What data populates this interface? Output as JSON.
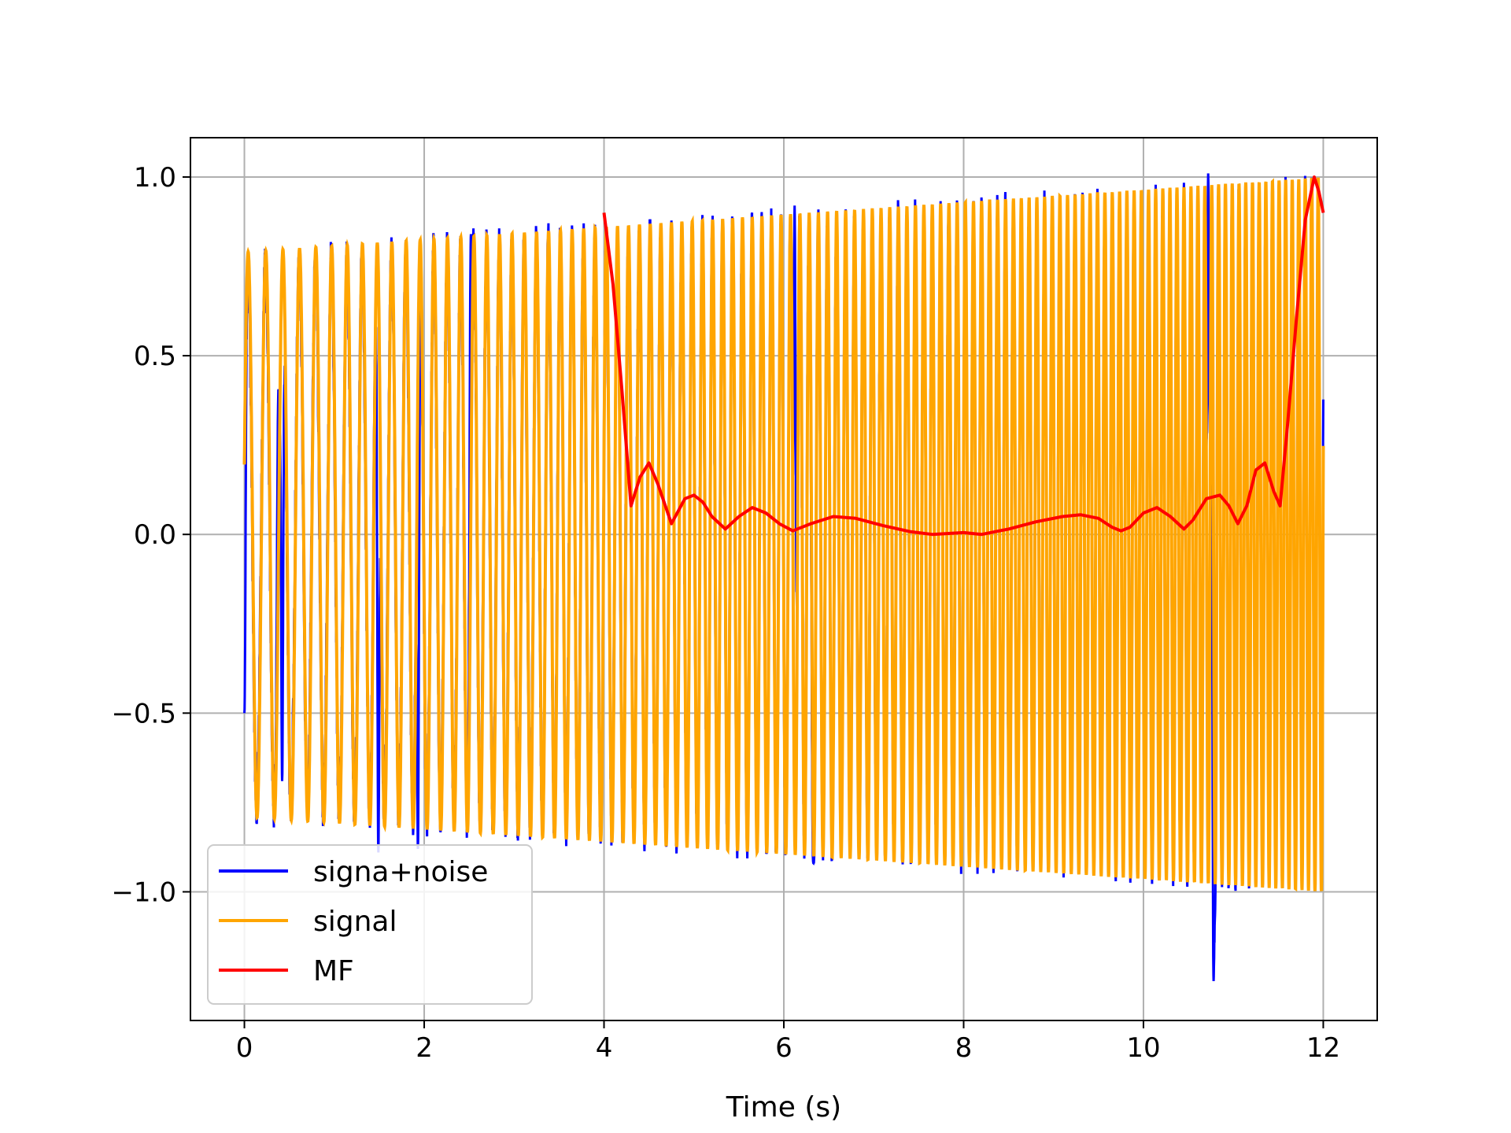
{
  "chart_data": {
    "type": "line",
    "title": "",
    "xlabel": "Time (s)",
    "ylabel": "",
    "xlim": [
      -0.6,
      12.6
    ],
    "ylim": [
      -1.36,
      1.11
    ],
    "xticks": [
      0,
      2,
      4,
      6,
      8,
      10,
      12
    ],
    "yticks": [
      1.0,
      0.5,
      0.0,
      -0.5,
      -1.0
    ],
    "xtick_labels": [
      "0",
      "2",
      "4",
      "6",
      "8",
      "10",
      "12"
    ],
    "ytick_labels": [
      "1.0",
      "0.5",
      "0.0",
      "−0.5",
      "−1.0"
    ],
    "grid": true,
    "legend_position": "lower left",
    "series": [
      {
        "name": "signa+noise",
        "color": "#0000ff",
        "description": "signal plus noise, oscillation 0 to 12 s",
        "spikes": [
          {
            "x": 0.0,
            "y": -0.5
          },
          {
            "x": 0.38,
            "y": 0.41
          },
          {
            "x": 0.42,
            "y": -0.69
          },
          {
            "x": 1.49,
            "y": -0.89
          },
          {
            "x": 1.93,
            "y": -0.88
          },
          {
            "x": 2.52,
            "y": 0.84
          },
          {
            "x": 6.12,
            "y": 0.92
          },
          {
            "x": 6.33,
            "y": -0.92
          },
          {
            "x": 10.72,
            "y": 1.01
          },
          {
            "x": 10.78,
            "y": -1.25
          }
        ]
      },
      {
        "name": "signal",
        "color": "#ffa500",
        "amplitude_start": 0.79,
        "amplitude_end": 1.0,
        "freq_start_hz": 5.0,
        "freq_end_hz": 14.0,
        "x_range": [
          0,
          12
        ]
      },
      {
        "name": "MF",
        "color": "#ff0000",
        "x": [
          4.0,
          4.1,
          4.2,
          4.3,
          4.4,
          4.5,
          4.6,
          4.75,
          4.9,
          5.0,
          5.1,
          5.2,
          5.35,
          5.5,
          5.65,
          5.8,
          5.95,
          6.1,
          6.3,
          6.55,
          6.8,
          7.1,
          7.4,
          7.65,
          8.0,
          8.2,
          8.5,
          8.8,
          9.1,
          9.3,
          9.5,
          9.65,
          9.75,
          9.85,
          10.0,
          10.15,
          10.3,
          10.45,
          10.55,
          10.7,
          10.85,
          10.95,
          11.05,
          11.15,
          11.25,
          11.35,
          11.45,
          11.52,
          11.6,
          11.7,
          11.8,
          11.9,
          11.95,
          12.0
        ],
        "y": [
          0.9,
          0.7,
          0.4,
          0.08,
          0.16,
          0.2,
          0.14,
          0.03,
          0.1,
          0.11,
          0.09,
          0.05,
          0.015,
          0.05,
          0.075,
          0.06,
          0.03,
          0.01,
          0.03,
          0.05,
          0.045,
          0.025,
          0.008,
          0.0,
          0.005,
          0.0,
          0.015,
          0.035,
          0.05,
          0.055,
          0.045,
          0.02,
          0.01,
          0.02,
          0.06,
          0.075,
          0.05,
          0.015,
          0.04,
          0.1,
          0.11,
          0.08,
          0.03,
          0.08,
          0.18,
          0.2,
          0.12,
          0.08,
          0.3,
          0.6,
          0.88,
          1.0,
          0.96,
          0.9
        ]
      }
    ]
  }
}
